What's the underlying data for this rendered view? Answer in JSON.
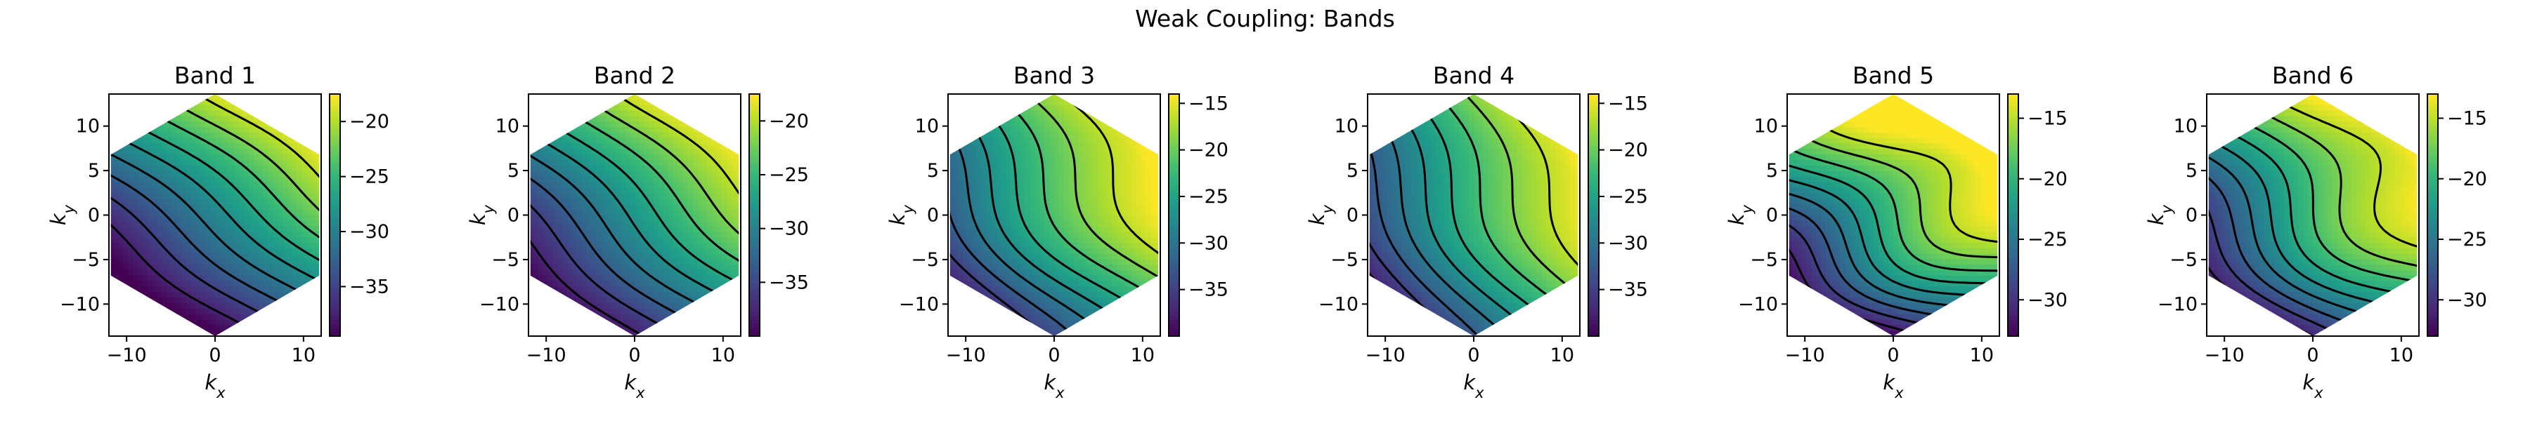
{
  "figure": {
    "suptitle": "Weak Coupling: Bands"
  },
  "chart_data": [
    {
      "type": "heatmap",
      "title": "Band 1",
      "xlabel": "k_x",
      "ylabel": "k_y",
      "xlim": [
        -12,
        12
      ],
      "ylim": [
        -13.6,
        13.6
      ],
      "xticks": [
        -10,
        0,
        10
      ],
      "yticks": [
        -10,
        -5,
        0,
        5,
        10
      ],
      "domain": "hexagon",
      "colormap": "viridis",
      "colorbar": {
        "range": [
          -39.5,
          -17.5
        ],
        "ticks": [
          -35,
          -30,
          -25,
          -20
        ]
      },
      "field": {
        "low_corner": [
          -2,
          -12
        ],
        "peak": [
          12,
          7
        ],
        "bulge": 0.0,
        "curl": 0.25
      },
      "contour_lines": "dashed"
    },
    {
      "type": "heatmap",
      "title": "Band 2",
      "xlabel": "k_x",
      "ylabel": "k_y",
      "xlim": [
        -12,
        12
      ],
      "ylim": [
        -13.6,
        13.6
      ],
      "xticks": [
        -10,
        0,
        10
      ],
      "yticks": [
        -10,
        -5,
        0,
        5,
        10
      ],
      "domain": "hexagon",
      "colormap": "viridis",
      "colorbar": {
        "range": [
          -40,
          -17.5
        ],
        "ticks": [
          -35,
          -30,
          -25,
          -20
        ]
      },
      "field": {
        "low_corner": [
          -4,
          -13
        ],
        "peak": [
          12,
          6
        ],
        "bulge": 0.1,
        "curl": 0.3
      },
      "contour_lines": "dashed"
    },
    {
      "type": "heatmap",
      "title": "Band 3",
      "xlabel": "k_x",
      "ylabel": "k_y",
      "xlim": [
        -12,
        12
      ],
      "ylim": [
        -13.6,
        13.6
      ],
      "xticks": [
        -10,
        0,
        10
      ],
      "yticks": [
        -10,
        -5,
        0,
        5,
        10
      ],
      "domain": "hexagon",
      "colormap": "viridis",
      "colorbar": {
        "range": [
          -40,
          -14
        ],
        "ticks": [
          -35,
          -30,
          -25,
          -20,
          -15
        ]
      },
      "field": {
        "low_corner": [
          -12,
          -9
        ],
        "peak": [
          9,
          7
        ],
        "bulge": 0.35,
        "curl": 0.5
      },
      "contour_lines": "dashed"
    },
    {
      "type": "heatmap",
      "title": "Band 4",
      "xlabel": "k_x",
      "ylabel": "k_y",
      "xlim": [
        -12,
        12
      ],
      "ylim": [
        -13.6,
        13.6
      ],
      "xticks": [
        -10,
        0,
        10
      ],
      "yticks": [
        -10,
        -5,
        0,
        5,
        10
      ],
      "domain": "hexagon",
      "colormap": "viridis",
      "colorbar": {
        "range": [
          -40,
          -14
        ],
        "ticks": [
          -35,
          -30,
          -25,
          -20,
          -15
        ]
      },
      "field": {
        "low_corner": [
          -12,
          -9
        ],
        "peak": [
          11,
          5
        ],
        "bulge": 0.3,
        "curl": 0.45
      },
      "contour_lines": "dashed"
    },
    {
      "type": "heatmap",
      "title": "Band 5",
      "xlabel": "k_x",
      "ylabel": "k_y",
      "xlim": [
        -12,
        12
      ],
      "ylim": [
        -13.6,
        13.6
      ],
      "xticks": [
        -10,
        0,
        10
      ],
      "yticks": [
        -10,
        -5,
        0,
        5,
        10
      ],
      "domain": "hexagon",
      "colormap": "viridis",
      "colorbar": {
        "range": [
          -33,
          -13
        ],
        "ticks": [
          -30,
          -25,
          -20,
          -15
        ]
      },
      "field": {
        "low_corner": [
          -3,
          -13
        ],
        "peak": [
          8,
          5
        ],
        "bulge": 0.5,
        "curl": 0.7
      },
      "contour_lines": "dashed"
    },
    {
      "type": "heatmap",
      "title": "Band 6",
      "xlabel": "k_x",
      "ylabel": "k_y",
      "xlim": [
        -12,
        12
      ],
      "ylim": [
        -13.6,
        13.6
      ],
      "xticks": [
        -10,
        0,
        10
      ],
      "yticks": [
        -10,
        -5,
        0,
        5,
        10
      ],
      "domain": "hexagon",
      "colormap": "viridis",
      "colorbar": {
        "range": [
          -33,
          -13
        ],
        "ticks": [
          -30,
          -25,
          -20,
          -15
        ]
      },
      "field": {
        "low_corner": [
          -6,
          -12
        ],
        "peak": [
          10,
          6
        ],
        "bulge": 0.55,
        "curl": 0.65
      },
      "contour_lines": "dashed"
    }
  ]
}
